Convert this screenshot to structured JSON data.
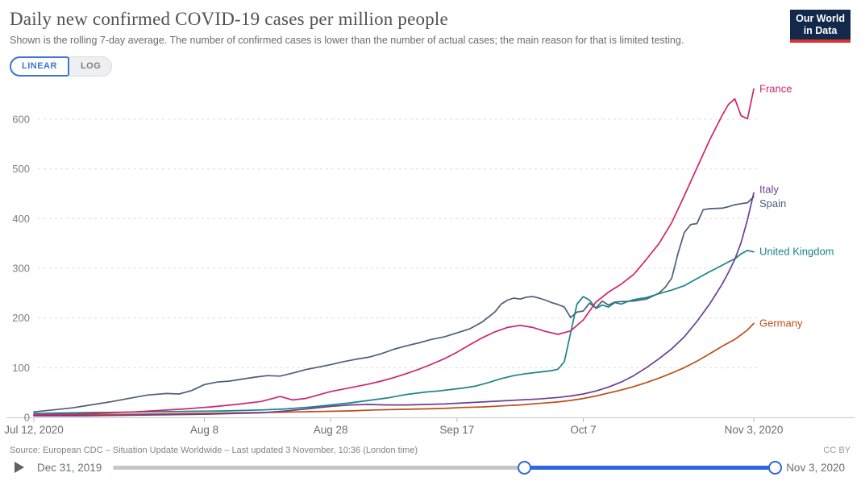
{
  "header": {
    "title": "Daily new confirmed COVID-19 cases per million people",
    "subtitle": "Shown is the rolling 7-day average. The number of confirmed cases is lower than the number of actual cases; the main reason for that is limited testing."
  },
  "logo": {
    "line1": "Our World",
    "line2": "in Data",
    "bg": "#12294B",
    "accent": "#D7352E"
  },
  "controls": {
    "linear_label": "LINEAR",
    "log_label": "LOG",
    "active": "LINEAR",
    "accent": "#3B76D2"
  },
  "chart_data": {
    "type": "line",
    "title": "Daily new confirmed COVID-19 cases per million people",
    "grid": "dashed-horizontal",
    "legend_position": "end-of-line-labels",
    "x_axis": {
      "unit": "date",
      "start": "Jul 12, 2020",
      "end": "Nov 3, 2020",
      "days_total": 114,
      "ticks": [
        {
          "label": "Jul 12, 2020",
          "day": 0
        },
        {
          "label": "Aug 8",
          "day": 27
        },
        {
          "label": "Aug 28",
          "day": 47
        },
        {
          "label": "Sep 17",
          "day": 67
        },
        {
          "label": "Oct 7",
          "day": 87
        },
        {
          "label": "Nov 3, 2020",
          "day": 114
        }
      ]
    },
    "y_axis": {
      "ticks": [
        0,
        100,
        200,
        300,
        400,
        500,
        600
      ],
      "range": [
        0,
        680
      ]
    },
    "series": [
      {
        "name": "Spain",
        "color": "#4D5E78",
        "label_dy": 9,
        "points": [
          [
            0,
            11
          ],
          [
            3,
            15
          ],
          [
            6,
            19
          ],
          [
            9,
            25
          ],
          [
            12,
            31
          ],
          [
            15,
            38
          ],
          [
            18,
            45
          ],
          [
            21,
            48
          ],
          [
            23,
            47
          ],
          [
            25,
            54
          ],
          [
            27,
            66
          ],
          [
            29,
            71
          ],
          [
            31,
            73
          ],
          [
            33,
            77
          ],
          [
            35,
            81
          ],
          [
            37,
            84
          ],
          [
            39,
            83
          ],
          [
            41,
            89
          ],
          [
            43,
            96
          ],
          [
            45,
            101
          ],
          [
            47,
            106
          ],
          [
            49,
            112
          ],
          [
            51,
            117
          ],
          [
            53,
            121
          ],
          [
            55,
            128
          ],
          [
            57,
            137
          ],
          [
            59,
            144
          ],
          [
            61,
            150
          ],
          [
            63,
            157
          ],
          [
            65,
            162
          ],
          [
            67,
            170
          ],
          [
            69,
            178
          ],
          [
            71,
            192
          ],
          [
            73,
            212
          ],
          [
            74,
            228
          ],
          [
            75,
            236
          ],
          [
            76,
            240
          ],
          [
            77,
            238
          ],
          [
            78,
            242
          ],
          [
            79,
            243
          ],
          [
            80,
            240
          ],
          [
            81,
            236
          ],
          [
            82,
            231
          ],
          [
            83,
            227
          ],
          [
            84,
            222
          ],
          [
            85,
            201
          ],
          [
            86,
            212
          ],
          [
            87,
            214
          ],
          [
            88,
            230
          ],
          [
            89,
            220
          ],
          [
            90,
            234
          ],
          [
            91,
            226
          ],
          [
            92,
            232
          ],
          [
            93,
            233
          ],
          [
            95,
            234
          ],
          [
            97,
            238
          ],
          [
            99,
            250
          ],
          [
            100,
            262
          ],
          [
            101,
            280
          ],
          [
            102,
            330
          ],
          [
            103,
            372
          ],
          [
            104,
            388
          ],
          [
            105,
            390
          ],
          [
            106,
            418
          ],
          [
            107,
            420
          ],
          [
            109,
            421
          ],
          [
            110,
            424
          ],
          [
            111,
            428
          ],
          [
            112,
            430
          ],
          [
            113,
            432
          ],
          [
            114,
            444
          ]
        ]
      },
      {
        "name": "Germany",
        "color": "#BE4E15",
        "label_dy": 0,
        "points": [
          [
            0,
            4
          ],
          [
            8,
            5
          ],
          [
            14,
            6
          ],
          [
            20,
            7
          ],
          [
            26,
            8
          ],
          [
            32,
            9
          ],
          [
            38,
            10
          ],
          [
            42,
            11
          ],
          [
            46,
            12
          ],
          [
            50,
            13
          ],
          [
            54,
            15
          ],
          [
            58,
            16
          ],
          [
            62,
            17
          ],
          [
            65,
            18
          ],
          [
            68,
            20
          ],
          [
            71,
            21
          ],
          [
            74,
            23
          ],
          [
            77,
            25
          ],
          [
            80,
            28
          ],
          [
            83,
            31
          ],
          [
            85,
            34
          ],
          [
            87,
            38
          ],
          [
            89,
            43
          ],
          [
            91,
            49
          ],
          [
            93,
            55
          ],
          [
            95,
            62
          ],
          [
            97,
            70
          ],
          [
            99,
            79
          ],
          [
            101,
            89
          ],
          [
            103,
            100
          ],
          [
            105,
            113
          ],
          [
            107,
            128
          ],
          [
            109,
            143
          ],
          [
            110,
            150
          ],
          [
            111,
            157
          ],
          [
            112,
            166
          ],
          [
            113,
            176
          ],
          [
            114,
            189
          ]
        ]
      },
      {
        "name": "United Kingdom",
        "color": "#18838A",
        "label_dy": 0,
        "points": [
          [
            0,
            8
          ],
          [
            6,
            9
          ],
          [
            12,
            10
          ],
          [
            18,
            11
          ],
          [
            24,
            12
          ],
          [
            30,
            13
          ],
          [
            36,
            15
          ],
          [
            40,
            17
          ],
          [
            44,
            21
          ],
          [
            47,
            25
          ],
          [
            50,
            29
          ],
          [
            53,
            34
          ],
          [
            56,
            39
          ],
          [
            59,
            46
          ],
          [
            62,
            51
          ],
          [
            64,
            53
          ],
          [
            66,
            56
          ],
          [
            68,
            59
          ],
          [
            70,
            63
          ],
          [
            72,
            70
          ],
          [
            74,
            78
          ],
          [
            76,
            84
          ],
          [
            78,
            88
          ],
          [
            80,
            91
          ],
          [
            82,
            94
          ],
          [
            83,
            97
          ],
          [
            84,
            112
          ],
          [
            85,
            170
          ],
          [
            86,
            228
          ],
          [
            87,
            243
          ],
          [
            88,
            236
          ],
          [
            89,
            219
          ],
          [
            90,
            226
          ],
          [
            91,
            222
          ],
          [
            92,
            231
          ],
          [
            93,
            228
          ],
          [
            94,
            233
          ],
          [
            95,
            237
          ],
          [
            97,
            241
          ],
          [
            99,
            249
          ],
          [
            101,
            256
          ],
          [
            103,
            265
          ],
          [
            105,
            279
          ],
          [
            107,
            293
          ],
          [
            109,
            306
          ],
          [
            110,
            313
          ],
          [
            111,
            319
          ],
          [
            112,
            329
          ],
          [
            113,
            336
          ],
          [
            114,
            333
          ]
        ]
      },
      {
        "name": "Italy",
        "color": "#6D3E91",
        "label_dy": -4,
        "points": [
          [
            0,
            3
          ],
          [
            8,
            3
          ],
          [
            14,
            4
          ],
          [
            20,
            5
          ],
          [
            26,
            6
          ],
          [
            32,
            8
          ],
          [
            36,
            9
          ],
          [
            40,
            13
          ],
          [
            44,
            18
          ],
          [
            47,
            22
          ],
          [
            50,
            25
          ],
          [
            53,
            26
          ],
          [
            56,
            25
          ],
          [
            59,
            25
          ],
          [
            62,
            26
          ],
          [
            65,
            27
          ],
          [
            68,
            29
          ],
          [
            71,
            31
          ],
          [
            74,
            33
          ],
          [
            77,
            35
          ],
          [
            80,
            37
          ],
          [
            83,
            40
          ],
          [
            85,
            43
          ],
          [
            87,
            47
          ],
          [
            89,
            53
          ],
          [
            91,
            61
          ],
          [
            93,
            71
          ],
          [
            95,
            84
          ],
          [
            97,
            100
          ],
          [
            99,
            118
          ],
          [
            101,
            138
          ],
          [
            103,
            162
          ],
          [
            105,
            193
          ],
          [
            107,
            228
          ],
          [
            109,
            268
          ],
          [
            110,
            292
          ],
          [
            111,
            318
          ],
          [
            112,
            352
          ],
          [
            113,
            398
          ],
          [
            114,
            452
          ]
        ]
      },
      {
        "name": "France",
        "color": "#D0246B",
        "label_dy": 0,
        "points": [
          [
            0,
            5
          ],
          [
            4,
            6
          ],
          [
            8,
            7
          ],
          [
            12,
            9
          ],
          [
            16,
            11
          ],
          [
            20,
            14
          ],
          [
            24,
            17
          ],
          [
            28,
            21
          ],
          [
            32,
            26
          ],
          [
            36,
            32
          ],
          [
            39,
            42
          ],
          [
            41,
            35
          ],
          [
            43,
            38
          ],
          [
            45,
            45
          ],
          [
            47,
            52
          ],
          [
            49,
            57
          ],
          [
            51,
            62
          ],
          [
            53,
            67
          ],
          [
            55,
            73
          ],
          [
            57,
            80
          ],
          [
            59,
            88
          ],
          [
            61,
            97
          ],
          [
            63,
            107
          ],
          [
            65,
            118
          ],
          [
            67,
            131
          ],
          [
            69,
            146
          ],
          [
            71,
            160
          ],
          [
            73,
            172
          ],
          [
            75,
            181
          ],
          [
            77,
            185
          ],
          [
            79,
            181
          ],
          [
            81,
            173
          ],
          [
            83,
            167
          ],
          [
            85,
            174
          ],
          [
            87,
            196
          ],
          [
            89,
            232
          ],
          [
            91,
            252
          ],
          [
            93,
            268
          ],
          [
            95,
            288
          ],
          [
            97,
            318
          ],
          [
            99,
            350
          ],
          [
            101,
            392
          ],
          [
            103,
            446
          ],
          [
            105,
            502
          ],
          [
            107,
            558
          ],
          [
            109,
            608
          ],
          [
            110,
            630
          ],
          [
            111,
            641
          ],
          [
            112,
            607
          ],
          [
            113,
            601
          ],
          [
            114,
            661
          ]
        ]
      }
    ]
  },
  "footer": {
    "source": "Source: European CDC – Situation Update Worldwide – Last updated 3 November, 10:36 (London time)",
    "license": "CC BY"
  },
  "timeline": {
    "start_label": "Dec 31, 2019",
    "end_label": "Nov 3, 2020",
    "range_start_frac": 0.622,
    "range_end_frac": 1,
    "accent": "#2F65E0",
    "track_color": "#C3C6CA"
  }
}
